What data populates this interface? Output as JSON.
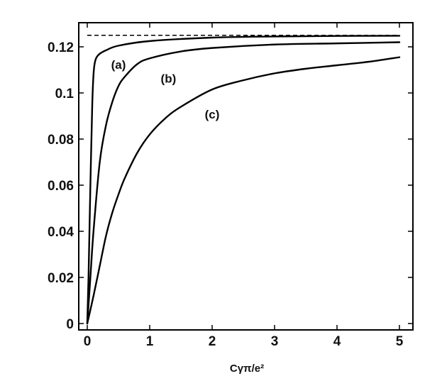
{
  "chart_data": {
    "type": "line",
    "title": "",
    "xlabel": "Cγπ/e²",
    "ylabel": "",
    "xlim": [
      0,
      5
    ],
    "ylim": [
      0,
      0.126
    ],
    "grid": false,
    "legend": "none",
    "x_ticks": [
      {
        "value": 0,
        "label": "0"
      },
      {
        "value": 1,
        "label": "1"
      },
      {
        "value": 2,
        "label": "2"
      },
      {
        "value": 3,
        "label": "3"
      },
      {
        "value": 4,
        "label": "4"
      },
      {
        "value": 5,
        "label": "5"
      }
    ],
    "y_ticks": [
      {
        "value": 0,
        "label": "0"
      },
      {
        "value": 0.02,
        "label": "0.02"
      },
      {
        "value": 0.04,
        "label": "0.04"
      },
      {
        "value": 0.06,
        "label": "0.06"
      },
      {
        "value": 0.08,
        "label": "0.08"
      },
      {
        "value": 0.1,
        "label": "0.1"
      },
      {
        "value": 0.12,
        "label": "0.12"
      }
    ],
    "asymptote": {
      "y": 0.125,
      "style": "dashed"
    },
    "series": [
      {
        "label": "(a)",
        "label_at": {
          "x": 0.5,
          "y": 0.1105
        },
        "x": [
          0,
          0.02,
          0.05,
          0.08,
          0.1,
          0.12,
          0.15,
          0.2,
          0.3,
          0.5,
          1,
          2,
          3,
          4,
          5
        ],
        "y": [
          0,
          0.02,
          0.06,
          0.095,
          0.108,
          0.113,
          0.1155,
          0.117,
          0.1185,
          0.1205,
          0.1225,
          0.124,
          0.1245,
          0.1247,
          0.1248
        ]
      },
      {
        "label": "(b)",
        "label_at": {
          "x": 1.3,
          "y": 0.1045
        },
        "x": [
          0,
          0.05,
          0.1,
          0.2,
          0.3,
          0.4,
          0.5,
          0.6,
          0.8,
          1.0,
          1.5,
          2,
          3,
          4,
          5
        ],
        "y": [
          0,
          0.02,
          0.04,
          0.07,
          0.086,
          0.096,
          0.103,
          0.107,
          0.1125,
          0.115,
          0.118,
          0.1195,
          0.121,
          0.1215,
          0.122
        ]
      },
      {
        "label": "(c)",
        "label_at": {
          "x": 2.0,
          "y": 0.089
        },
        "x": [
          0,
          0.1,
          0.2,
          0.3,
          0.4,
          0.5,
          0.6,
          0.8,
          1.0,
          1.25,
          1.5,
          2,
          2.5,
          3,
          3.5,
          4,
          4.5,
          5
        ],
        "y": [
          0,
          0.012,
          0.025,
          0.038,
          0.048,
          0.056,
          0.063,
          0.074,
          0.082,
          0.089,
          0.094,
          0.1015,
          0.1055,
          0.1085,
          0.1105,
          0.112,
          0.1135,
          0.1155
        ]
      }
    ]
  }
}
